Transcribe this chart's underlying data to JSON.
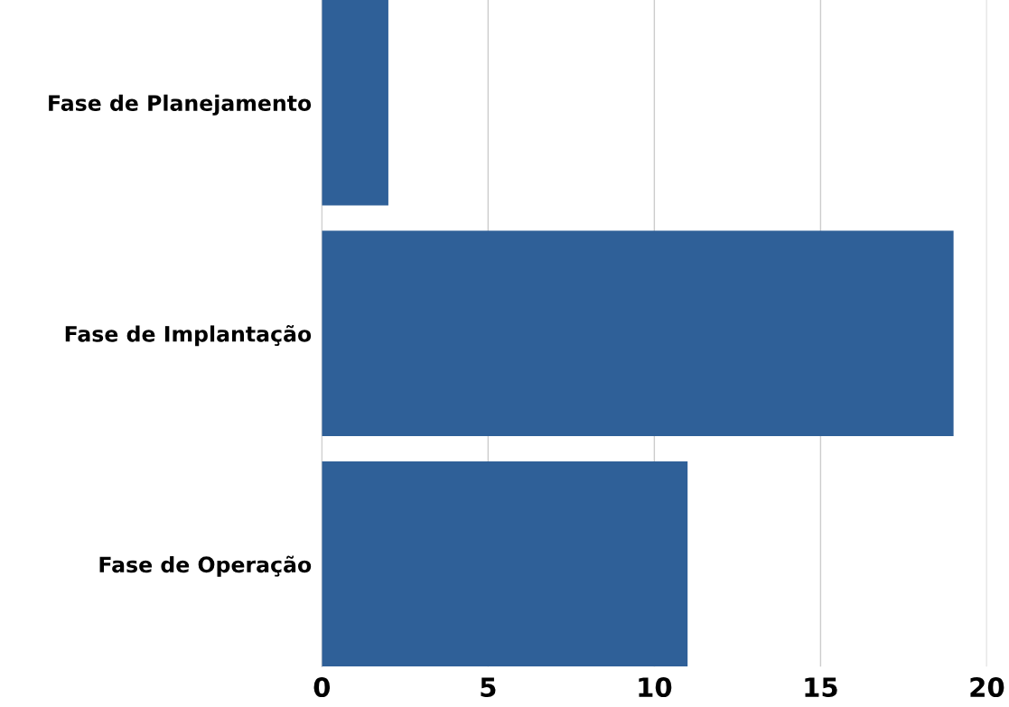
{
  "chart_data": {
    "type": "bar",
    "orientation": "horizontal",
    "categories": [
      "Fase de Planejamento",
      "Fase de Implantação",
      "Fase de Operação"
    ],
    "values": [
      2,
      19,
      11
    ],
    "color": "#2f6098",
    "xlim": [
      0,
      20
    ],
    "xticks": [
      0,
      5,
      10,
      15,
      20
    ],
    "grid": "x"
  }
}
